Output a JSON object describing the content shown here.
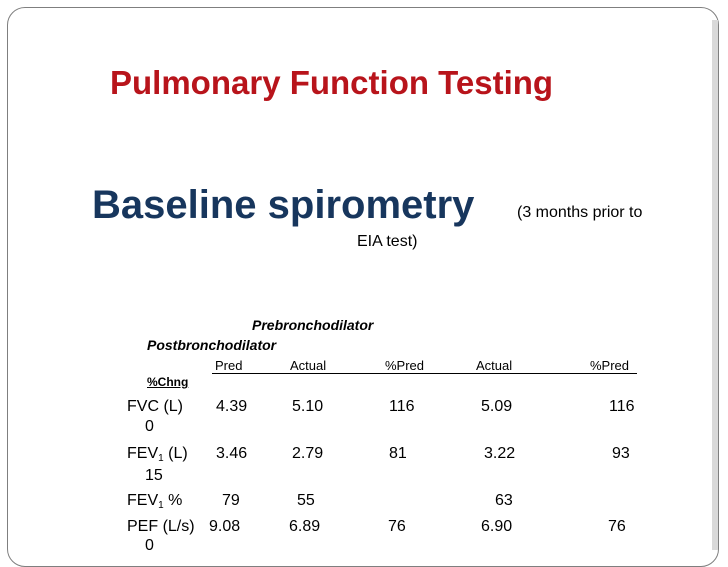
{
  "title": "Pulmonary Function Testing",
  "subtitle": "Baseline spirometry",
  "subtitle_note": {
    "line1": "(3 months prior to",
    "line2": "EIA test)"
  },
  "table": {
    "group_headers": {
      "pre": "Prebronchodilator",
      "post": "Postbronchodilator"
    },
    "columns": [
      "Pred",
      "Actual",
      "%Pred",
      "Actual",
      "%Pred"
    ],
    "change_header": "%Chng",
    "rows": [
      {
        "label": "FVC (L)",
        "values": [
          "4.39",
          "5.10",
          "116",
          "5.09",
          "116"
        ],
        "chng": "0"
      },
      {
        "label_main": "FEV",
        "label_sub": "1",
        "label_suffix": " (L)",
        "values": [
          "3.46",
          "2.79",
          "81",
          "3.22",
          "93"
        ],
        "chng": "15"
      },
      {
        "label_main": "FEV",
        "label_sub": "1",
        "label_suffix": " %",
        "values": [
          "79",
          "55",
          "",
          "63",
          ""
        ]
      },
      {
        "label": "PEF (L/s)",
        "values": [
          "9.08",
          "6.89",
          "76",
          "6.90",
          "76"
        ],
        "chng": "0"
      }
    ]
  }
}
